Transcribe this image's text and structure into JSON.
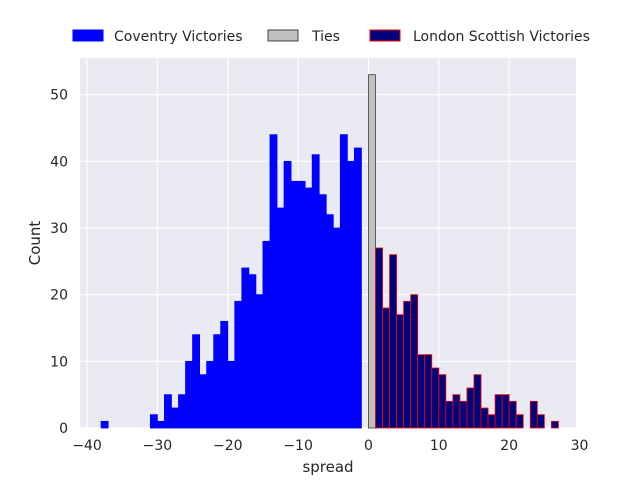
{
  "chart_data": {
    "type": "bar",
    "title": "",
    "xlabel": "spread",
    "ylabel": "Count",
    "xlim": [
      -41,
      29.5
    ],
    "ylim": [
      0,
      55.5
    ],
    "x_ticks": [
      -40,
      -30,
      -20,
      -10,
      0,
      10,
      20,
      30
    ],
    "x_tick_labels": [
      "−40",
      "−30",
      "−20",
      "−10",
      "0",
      "10",
      "20",
      "30"
    ],
    "y_ticks": [
      0,
      10,
      20,
      30,
      40,
      50
    ],
    "y_tick_labels": [
      "0",
      "10",
      "20",
      "30",
      "40",
      "50"
    ],
    "grid": true,
    "legend_position": "top-center",
    "series": [
      {
        "name": "Coventry Victories",
        "color": "#0000ff",
        "edge_color": "#0000ff",
        "x": [
          -38,
          -31,
          -30,
          -29,
          -28,
          -27,
          -26,
          -25,
          -24,
          -23,
          -22,
          -21,
          -20,
          -19,
          -18,
          -17,
          -16,
          -15,
          -14,
          -13,
          -12,
          -11,
          -10,
          -9,
          -8,
          -7,
          -6,
          -5,
          -4,
          -3,
          -2,
          -1
        ],
        "values": [
          1,
          2,
          1,
          5,
          3,
          5,
          10,
          14,
          8,
          10,
          14,
          16,
          10,
          19,
          24,
          23,
          20,
          28,
          44,
          33,
          40,
          37,
          37,
          36,
          41,
          35,
          32,
          30,
          44,
          40,
          42,
          0
        ]
      },
      {
        "name": "Ties",
        "color": "#c0c0c0",
        "edge_color": "#404040",
        "x": [
          0
        ],
        "values": [
          53
        ]
      },
      {
        "name": "London Scottish Victories",
        "color": "#00007a",
        "edge_color": "#ff0000",
        "x": [
          1,
          2,
          3,
          4,
          5,
          6,
          7,
          8,
          9,
          10,
          11,
          12,
          13,
          14,
          15,
          16,
          17,
          18,
          19,
          20,
          21,
          22,
          23,
          24,
          25,
          26,
          27
        ],
        "values": [
          27,
          18,
          26,
          17,
          19,
          20,
          11,
          11,
          9,
          8,
          4,
          5,
          4,
          6,
          8,
          3,
          2,
          5,
          5,
          4,
          2,
          0,
          4,
          2,
          0,
          1,
          0
        ]
      }
    ]
  }
}
